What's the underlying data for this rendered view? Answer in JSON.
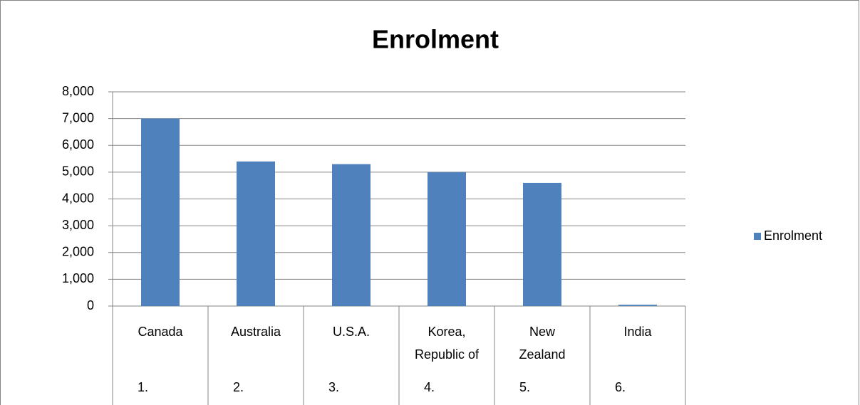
{
  "chart_data": {
    "type": "bar",
    "title": "Enrolment",
    "categories": [
      "Canada",
      "Australia",
      "U.S.A.",
      "Korea, Republic of",
      "New Zealand",
      "India"
    ],
    "ranks": [
      "1.",
      "2.",
      "3.",
      "4.",
      "5.",
      "6."
    ],
    "series": [
      {
        "name": "Enrolment",
        "color": "#4f81bd",
        "values": [
          7000,
          5400,
          5300,
          5000,
          4600,
          50
        ]
      }
    ],
    "ylim": [
      0,
      8000
    ],
    "yticks": [
      0,
      {
        "value": 1000,
        "label": "1,000"
      },
      {
        "value": 2000,
        "label": "2,000"
      },
      {
        "value": 3000,
        "label": "3,000"
      },
      {
        "value": 4000,
        "label": "4,000"
      },
      {
        "value": 5000,
        "label": "5,000"
      },
      {
        "value": 6000,
        "label": "6,000"
      },
      {
        "value": 7000,
        "label": "7,000"
      },
      {
        "value": 8000,
        "label": "8,000"
      }
    ],
    "grid": true,
    "legend": "right"
  }
}
